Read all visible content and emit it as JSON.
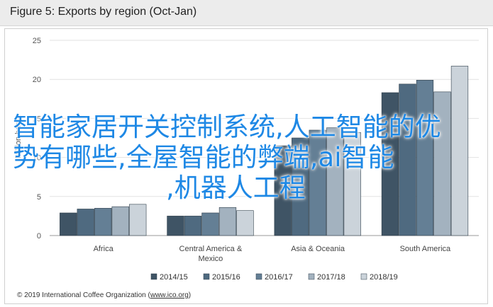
{
  "title": "Figure 5: Exports by region (Oct-Jan)",
  "source": {
    "prefix": "© 2019 International Coffee Organization (",
    "link": "www.ico.org",
    "suffix": ")"
  },
  "watermark": {
    "line1": "智能家居开关控制系统,人工智能的优",
    "line2": "势有哪些,全屋智能的弊端,ai智能",
    "line3": ",机器人工程"
  },
  "chart_data": {
    "type": "bar",
    "title": "Figure 5: Exports by region (Oct-Jan)",
    "ylabel": "Million bags",
    "ylim": [
      0,
      25
    ],
    "yticks": [
      0,
      5,
      10,
      15,
      20,
      25
    ],
    "grid": true,
    "legend_position": "bottom",
    "categories": [
      "Africa",
      "Central America & Mexico",
      "Asia & Oceania",
      "South America"
    ],
    "category_lines": [
      [
        "Africa"
      ],
      [
        "Central America &",
        "Mexico"
      ],
      [
        "Asia & Oceania"
      ],
      [
        "South America"
      ]
    ],
    "series": [
      {
        "name": "2014/15",
        "color": "#3f5465",
        "values": [
          2.9,
          2.5,
          11.5,
          18.3
        ]
      },
      {
        "name": "2015/16",
        "color": "#4f6a80",
        "values": [
          3.4,
          2.5,
          12.5,
          19.4
        ]
      },
      {
        "name": "2016/17",
        "color": "#647f95",
        "values": [
          3.5,
          2.9,
          13.5,
          19.9
        ]
      },
      {
        "name": "2017/18",
        "color": "#a3b2bf",
        "values": [
          3.7,
          3.6,
          13.8,
          18.4
        ]
      },
      {
        "name": "2018/19",
        "color": "#cbd3da",
        "values": [
          4.0,
          3.2,
          13.2,
          21.7
        ]
      }
    ]
  }
}
